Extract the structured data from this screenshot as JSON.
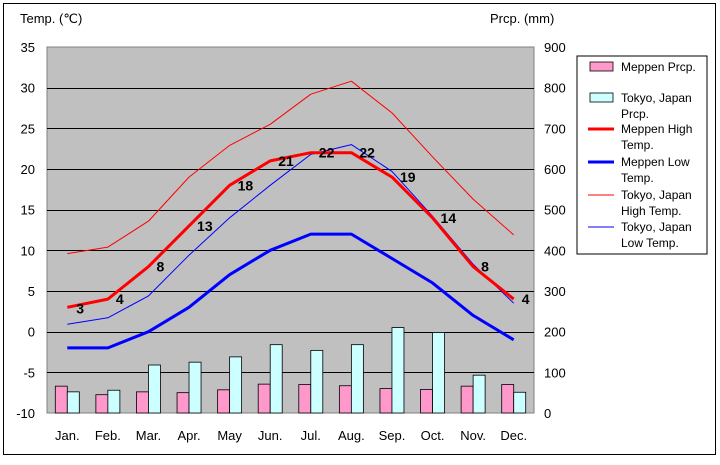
{
  "chart_data": {
    "type": "bar+line",
    "categories": [
      "Jan.",
      "Feb.",
      "Mar.",
      "Apr.",
      "May",
      "Jun.",
      "Jul.",
      "Aug.",
      "Sep.",
      "Oct.",
      "Nov.",
      "Dec."
    ],
    "y_left_label": "Temp. (℃)",
    "y_right_label": "Prcp. (mm)",
    "y_left_ticks": [
      35,
      30,
      25,
      20,
      15,
      10,
      5,
      0,
      -5,
      -10
    ],
    "y_right_ticks": [
      900,
      800,
      700,
      600,
      500,
      400,
      300,
      200,
      100,
      0
    ],
    "ylim_left": [
      -10,
      35
    ],
    "ylim_right": [
      0,
      900
    ],
    "legend_position": "right",
    "grid": true,
    "series": [
      {
        "name": "Meppen Prcp.",
        "kind": "bar",
        "axis": "right",
        "color": "#ff99cc",
        "values": [
          66,
          45,
          52,
          50,
          57,
          71,
          70,
          67,
          60,
          58,
          66,
          70
        ]
      },
      {
        "name": "Tokyo, Japan Prcp.",
        "kind": "bar",
        "axis": "right",
        "color": "#ccffff",
        "values": [
          52,
          56,
          118,
          125,
          138,
          168,
          154,
          168,
          210,
          198,
          93,
          51
        ]
      },
      {
        "name": "Meppen High Temp.",
        "kind": "line",
        "axis": "left",
        "color": "#ff0000",
        "values": [
          3,
          4,
          8,
          13,
          18,
          21,
          22,
          22,
          19,
          14,
          8,
          4
        ],
        "labels": [
          "3",
          "4",
          "8",
          "13",
          "18",
          "21",
          "22",
          "22",
          "19",
          "14",
          "8",
          "4"
        ]
      },
      {
        "name": "Meppen Low Temp.",
        "kind": "line",
        "axis": "left",
        "color": "#0000ff",
        "values": [
          -2,
          -2,
          0,
          3,
          7,
          10,
          12,
          12,
          9,
          6,
          2,
          -1
        ]
      },
      {
        "name": "Tokyo, Japan High Temp.",
        "kind": "line",
        "axis": "left",
        "color": "#ff0000",
        "values": [
          9.6,
          10.4,
          13.6,
          19.0,
          22.9,
          25.5,
          29.2,
          30.8,
          26.9,
          21.5,
          16.3,
          11.9
        ]
      },
      {
        "name": "Tokyo, Japan Low Temp.",
        "kind": "line",
        "axis": "left",
        "color": "#0000ff",
        "values": [
          0.9,
          1.7,
          4.4,
          9.4,
          14.0,
          18.0,
          21.8,
          23.0,
          19.7,
          14.2,
          8.3,
          3.5
        ]
      }
    ],
    "legend": [
      {
        "lines": [
          "Meppen Prcp."
        ]
      },
      {
        "lines": [
          "Tokyo, Japan",
          "Prcp."
        ]
      },
      {
        "lines": [
          "Meppen High",
          "Temp."
        ]
      },
      {
        "lines": [
          "Meppen Low",
          "Temp."
        ]
      },
      {
        "lines": [
          "Tokyo, Japan",
          "High Temp."
        ]
      },
      {
        "lines": [
          "Tokyo, Japan",
          "Low Temp."
        ]
      }
    ]
  }
}
